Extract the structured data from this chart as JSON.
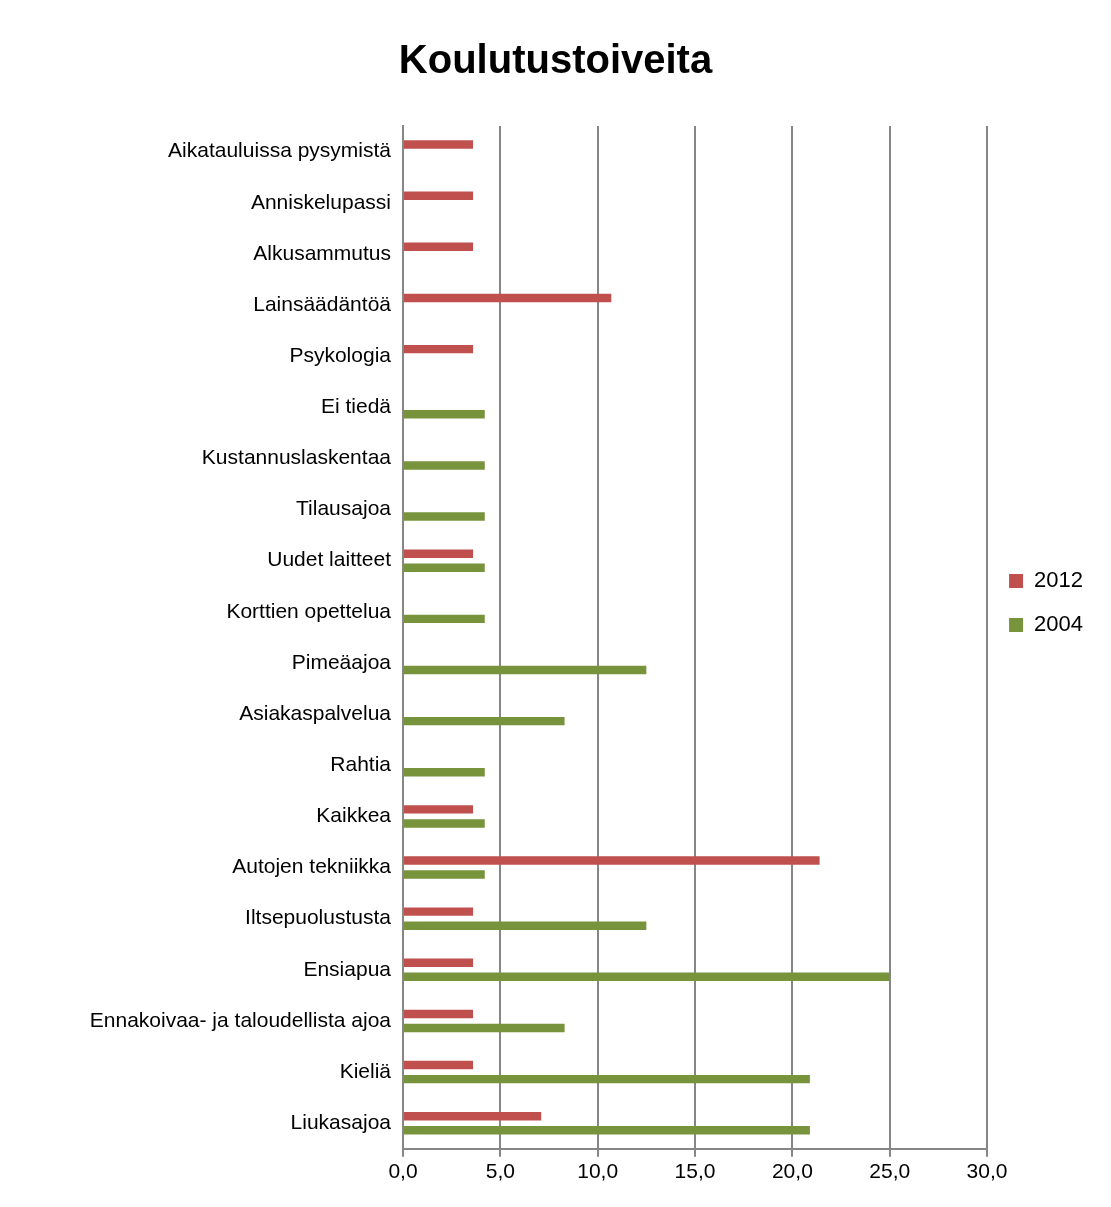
{
  "chart_data": {
    "type": "bar",
    "orientation": "horizontal",
    "title": "Koulutustoiveita",
    "categories": [
      "Aikatauluissa pysymistä",
      "Anniskelupassi",
      "Alkusammutus",
      "Lainsäädäntöä",
      "Psykologia",
      "Ei tiedä",
      "Kustannuslaskentaa",
      "Tilausajoa",
      "Uudet laitteet",
      "Korttien opettelua",
      "Pimeäajoa",
      "Asiakaspalvelua",
      "Rahtia",
      "Kaikkea",
      "Autojen tekniikka",
      "Iltsepuolustusta",
      "Ensiapua",
      "Ennakoivaa- ja taloudellista ajoa",
      "Kieliä",
      "Liukasajoa"
    ],
    "series": [
      {
        "name": "2012",
        "color": "#c0504d",
        "values": [
          3.6,
          3.6,
          3.6,
          10.7,
          3.6,
          null,
          null,
          null,
          3.6,
          null,
          null,
          null,
          null,
          3.6,
          21.4,
          3.6,
          3.6,
          3.6,
          3.6,
          7.1
        ]
      },
      {
        "name": "2004",
        "color": "#77933c",
        "values": [
          null,
          null,
          null,
          null,
          null,
          4.2,
          4.2,
          4.2,
          4.2,
          4.2,
          12.5,
          8.3,
          4.2,
          4.2,
          4.2,
          12.5,
          25.0,
          8.3,
          20.9,
          20.9
        ]
      }
    ],
    "xlim": [
      0,
      30
    ],
    "xticks": [
      {
        "value": 0,
        "label": "0,0"
      },
      {
        "value": 5,
        "label": "5,0"
      },
      {
        "value": 10,
        "label": "10,0"
      },
      {
        "value": 15,
        "label": "15,0"
      },
      {
        "value": 20,
        "label": "20,0"
      },
      {
        "value": 25,
        "label": "25,0"
      },
      {
        "value": 30,
        "label": "30,0"
      }
    ],
    "grid": "x",
    "legend": "right"
  }
}
